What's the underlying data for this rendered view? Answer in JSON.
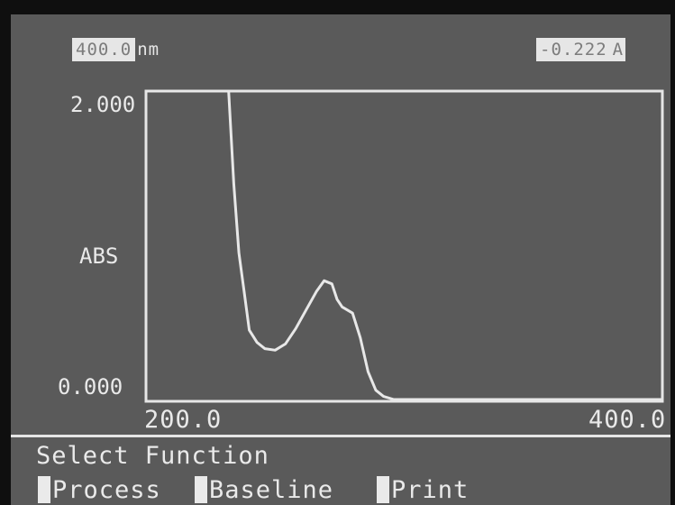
{
  "readouts": {
    "wavelength_value": "400.0",
    "wavelength_unit": "nm",
    "absorbance_value": "-0.222",
    "absorbance_unit": "A"
  },
  "chart_data": {
    "type": "line",
    "title": "",
    "xlabel": "",
    "ylabel": "ABS",
    "xlim": [
      200.0,
      400.0
    ],
    "ylim": [
      0.0,
      2.0
    ],
    "x_tick_labels": [
      "200.0",
      "400.0"
    ],
    "y_tick_labels": [
      "2.000",
      "0.000"
    ],
    "grid": false,
    "legend": "none",
    "line_color": "#e8e8e8",
    "series": [
      {
        "x": [
          200.0,
          205.0,
          210.0,
          215.0,
          220.0,
          225.0,
          230.0,
          232.0,
          234.0,
          236.0,
          238.0,
          240.0,
          243.0,
          246.0,
          250.0,
          254.0,
          258.0,
          262.0,
          266.0,
          269.0,
          272.0,
          274.0,
          276.0,
          278.0,
          280.0,
          283.0,
          286.0,
          289.0,
          292.0,
          296.0,
          300.0,
          305.0,
          310.0,
          320.0,
          330.0,
          340.0,
          350.0,
          360.0,
          370.0,
          380.0,
          390.0,
          400.0
        ],
        "y": [
          2.0,
          2.0,
          2.0,
          2.0,
          2.0,
          2.0,
          2.0,
          2.0,
          1.4,
          0.95,
          0.7,
          0.45,
          0.37,
          0.33,
          0.32,
          0.36,
          0.46,
          0.58,
          0.7,
          0.77,
          0.75,
          0.65,
          0.6,
          0.58,
          0.56,
          0.4,
          0.18,
          0.06,
          0.02,
          0.0,
          0.0,
          0.0,
          0.0,
          0.0,
          0.0,
          0.0,
          0.0,
          0.0,
          0.0,
          0.0,
          0.0,
          0.0
        ]
      }
    ]
  },
  "footer": {
    "prompt": "Select Function",
    "menu": [
      {
        "label": "Process"
      },
      {
        "label": "Baseline"
      },
      {
        "label": "Print"
      }
    ]
  }
}
